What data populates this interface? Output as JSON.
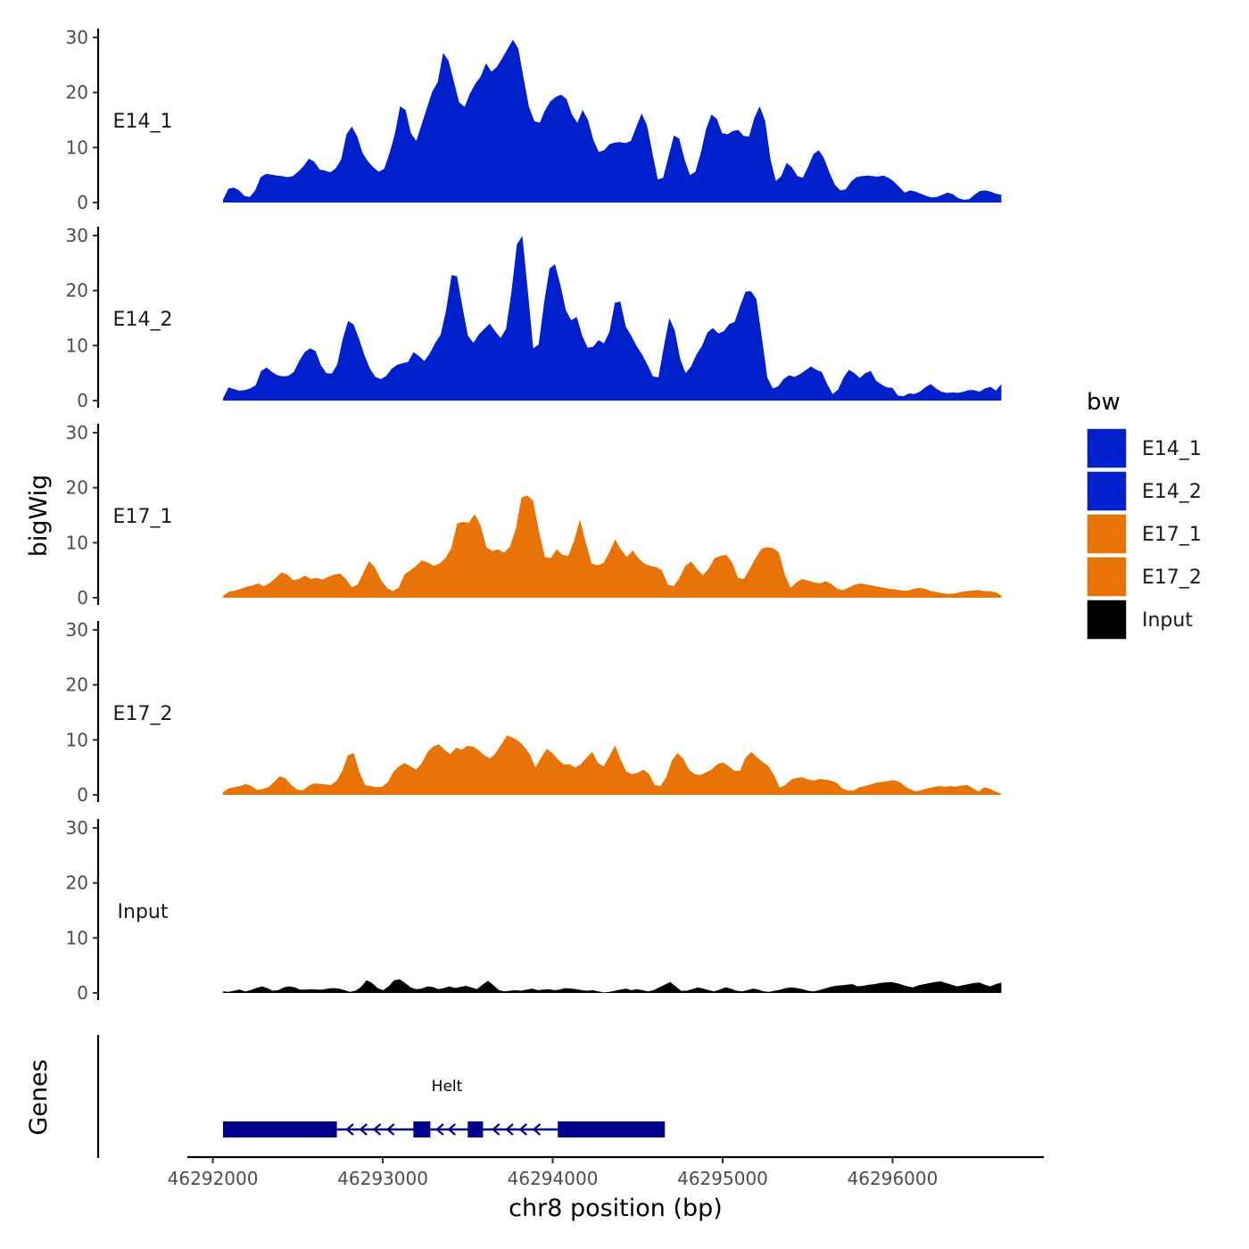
{
  "chart_data": {
    "type": "area",
    "ylabel": "bigWig",
    "xlabel": "chr8 position (bp)",
    "genes_label": "Genes",
    "xlim": [
      46291850,
      46296890
    ],
    "x_range": [
      46292060,
      46296640
    ],
    "ylim": [
      0,
      31
    ],
    "yticks": [
      0,
      10,
      20,
      30
    ],
    "xticks": [
      46292000,
      46293000,
      46294000,
      46295000,
      46296000
    ],
    "xtick_labels": [
      "46292000",
      "46293000",
      "46294000",
      "46295000",
      "46296000"
    ],
    "tracks": [
      {
        "name": "E14_1",
        "label": "E14_1",
        "color": "#0020cc",
        "values": [
          0.5,
          2.5,
          2.7,
          2.2,
          1.2,
          1.0,
          2.2,
          4.6,
          5.2,
          5.1,
          4.9,
          4.8,
          4.6,
          4.8,
          5.6,
          6.6,
          8.0,
          7.4,
          6.0,
          5.8,
          5.5,
          6.2,
          7.8,
          12.4,
          13.8,
          12.0,
          9.0,
          7.5,
          6.4,
          5.6,
          6.1,
          8.9,
          12.4,
          17.5,
          16.8,
          12.6,
          11.2,
          14.2,
          17.2,
          20.2,
          21.9,
          27.2,
          25.8,
          22.0,
          18.2,
          17.4,
          19.8,
          21.6,
          22.9,
          25.3,
          23.8,
          24.6,
          26.2,
          27.9,
          29.6,
          28.0,
          22.6,
          17.4,
          14.8,
          14.5,
          16.8,
          18.4,
          19.2,
          19.6,
          18.8,
          16.0,
          14.5,
          16.8,
          15.0,
          11.4,
          9.2,
          9.5,
          10.6,
          10.9,
          11.0,
          10.8,
          11.2,
          13.8,
          16.2,
          14.0,
          9.0,
          4.2,
          4.5,
          8.4,
          12.2,
          11.6,
          7.8,
          5.0,
          5.6,
          9.0,
          13.4,
          16.0,
          15.2,
          12.6,
          12.4,
          13.0,
          13.2,
          12.1,
          12.0,
          15.4,
          17.5,
          14.8,
          7.8,
          3.9,
          4.8,
          7.2,
          6.4,
          4.8,
          4.5,
          6.5,
          8.8,
          9.5,
          8.0,
          5.4,
          3.2,
          2.2,
          2.4,
          3.8,
          4.6,
          4.8,
          4.9,
          4.8,
          4.7,
          4.9,
          4.5,
          3.8,
          2.8,
          1.8,
          2.2,
          2.0,
          1.6,
          1.2,
          0.9,
          1.0,
          1.4,
          1.8,
          1.5,
          0.8,
          0.5,
          0.6,
          1.4,
          2.1,
          2.2,
          2.0,
          1.6,
          1.4
        ]
      },
      {
        "name": "E14_2",
        "label": "E14_2",
        "color": "#0020cc",
        "values": [
          0.4,
          2.4,
          2.1,
          1.8,
          1.9,
          2.2,
          2.8,
          5.4,
          6.0,
          5.2,
          4.6,
          4.4,
          4.5,
          5.2,
          7.2,
          8.8,
          9.5,
          9.0,
          6.4,
          5.0,
          4.9,
          6.6,
          11.2,
          14.5,
          13.8,
          11.2,
          8.2,
          5.8,
          4.3,
          3.9,
          4.5,
          5.8,
          6.5,
          6.8,
          7.0,
          8.8,
          8.1,
          7.2,
          8.6,
          10.5,
          12.0,
          16.5,
          22.8,
          22.6,
          17.0,
          11.8,
          10.5,
          12.0,
          13.0,
          14.0,
          12.6,
          11.4,
          13.0,
          19.8,
          28.4,
          29.9,
          20.0,
          9.5,
          10.2,
          17.8,
          24.0,
          24.8,
          21.0,
          16.4,
          14.6,
          15.2,
          11.8,
          9.6,
          9.8,
          11.0,
          10.4,
          12.5,
          17.8,
          18.0,
          13.5,
          11.8,
          9.9,
          8.4,
          6.5,
          4.4,
          4.2,
          9.8,
          15.0,
          12.8,
          7.6,
          5.0,
          6.2,
          8.4,
          9.9,
          12.4,
          13.2,
          12.2,
          12.6,
          13.9,
          14.3,
          17.2,
          19.8,
          19.9,
          18.4,
          11.4,
          4.2,
          2.2,
          2.6,
          3.9,
          4.6,
          4.3,
          4.8,
          5.5,
          6.2,
          5.6,
          5.2,
          3.0,
          1.2,
          2.0,
          4.2,
          5.6,
          5.0,
          4.1,
          5.0,
          5.4,
          3.6,
          2.9,
          2.4,
          2.3,
          0.9,
          0.8,
          1.3,
          1.2,
          1.6,
          2.4,
          3.0,
          2.2,
          1.6,
          1.4,
          1.5,
          1.4,
          1.6,
          1.9,
          1.9,
          1.6,
          2.2,
          2.5,
          1.8,
          3.0
        ]
      },
      {
        "name": "E17_1",
        "label": "E17_1",
        "color": "#e87306",
        "values": [
          0.3,
          1.1,
          1.3,
          1.6,
          2.0,
          2.2,
          2.6,
          2.1,
          2.7,
          3.6,
          4.6,
          4.2,
          3.2,
          3.4,
          4.0,
          3.4,
          3.6,
          3.3,
          3.8,
          4.2,
          4.4,
          3.4,
          1.9,
          2.4,
          4.6,
          6.7,
          5.4,
          3.2,
          1.8,
          1.2,
          1.8,
          4.2,
          5.0,
          5.8,
          6.8,
          6.4,
          5.8,
          6.2,
          7.2,
          9.0,
          13.5,
          13.8,
          13.6,
          15.2,
          13.2,
          9.2,
          8.5,
          8.8,
          8.2,
          9.2,
          12.4,
          18.2,
          18.6,
          17.6,
          12.0,
          7.4,
          7.2,
          8.8,
          7.8,
          7.6,
          10.4,
          14.2,
          10.0,
          6.2,
          5.9,
          6.3,
          8.2,
          10.6,
          8.8,
          7.4,
          8.6,
          7.2,
          6.2,
          5.8,
          5.6,
          5.0,
          2.4,
          2.1,
          3.6,
          5.8,
          6.6,
          5.2,
          4.1,
          5.3,
          7.2,
          7.6,
          7.8,
          6.4,
          3.6,
          3.4,
          5.2,
          7.2,
          8.9,
          9.2,
          9.0,
          8.2,
          4.2,
          1.8,
          2.8,
          3.4,
          3.1,
          2.8,
          2.6,
          3.0,
          2.5,
          1.6,
          1.4,
          1.9,
          2.4,
          2.6,
          2.4,
          2.2,
          2.0,
          1.8,
          1.6,
          1.5,
          1.3,
          1.3,
          1.6,
          1.8,
          1.6,
          1.2,
          1.0,
          0.8,
          0.7,
          0.8,
          1.0,
          1.2,
          1.3,
          1.4,
          1.2,
          1.2,
          1.0,
          0.4
        ]
      },
      {
        "name": "E17_2",
        "label": "E17_2",
        "color": "#e87306",
        "values": [
          0.5,
          1.2,
          1.4,
          1.6,
          2.0,
          1.6,
          0.9,
          1.1,
          1.4,
          2.4,
          3.4,
          3.0,
          1.8,
          1.0,
          0.8,
          1.6,
          2.1,
          2.0,
          1.9,
          1.8,
          2.6,
          4.4,
          7.2,
          7.6,
          4.2,
          1.8,
          1.6,
          1.4,
          1.5,
          2.3,
          4.2,
          5.2,
          5.8,
          5.2,
          4.6,
          5.8,
          7.8,
          8.8,
          9.2,
          8.2,
          7.4,
          8.6,
          8.2,
          8.9,
          8.8,
          8.1,
          7.2,
          6.6,
          7.6,
          9.2,
          10.8,
          10.4,
          9.8,
          8.8,
          7.4,
          5.0,
          6.8,
          8.4,
          7.6,
          6.4,
          5.5,
          5.6,
          5.0,
          5.6,
          6.8,
          7.8,
          5.8,
          5.2,
          7.0,
          9.0,
          6.4,
          4.2,
          3.8,
          4.0,
          4.6,
          3.8,
          1.8,
          1.6,
          3.2,
          6.2,
          7.6,
          6.6,
          4.6,
          3.8,
          3.6,
          4.1,
          4.6,
          5.6,
          5.9,
          5.2,
          4.4,
          4.4,
          6.8,
          7.8,
          6.8,
          6.0,
          5.2,
          3.6,
          1.3,
          1.8,
          2.8,
          3.1,
          3.2,
          2.8,
          2.6,
          2.9,
          2.8,
          2.6,
          2.2,
          1.2,
          0.8,
          0.8,
          1.4,
          1.6,
          1.9,
          2.2,
          2.4,
          2.5,
          2.7,
          2.4,
          1.6,
          1.0,
          0.6,
          0.9,
          1.2,
          1.4,
          1.6,
          1.5,
          1.6,
          1.5,
          1.7,
          1.8,
          1.2,
          0.6,
          1.4,
          1.1,
          0.6,
          0.2
        ]
      },
      {
        "name": "Input",
        "label": "Input",
        "color": "#000000",
        "values": [
          0.3,
          0.2,
          0.4,
          0.6,
          0.3,
          0.5,
          0.9,
          1.2,
          0.9,
          0.4,
          0.5,
          1.0,
          1.2,
          1.0,
          0.6,
          0.6,
          0.7,
          0.6,
          0.6,
          0.8,
          0.9,
          0.8,
          0.5,
          0.2,
          0.4,
          1.1,
          2.3,
          1.8,
          0.9,
          0.5,
          1.2,
          2.3,
          2.5,
          1.8,
          1.0,
          0.7,
          0.8,
          1.2,
          1.1,
          0.7,
          0.9,
          1.2,
          0.9,
          1.1,
          1.3,
          1.0,
          0.7,
          1.5,
          2.2,
          1.4,
          0.5,
          0.3,
          0.4,
          0.5,
          0.4,
          0.6,
          0.8,
          0.5,
          0.6,
          0.7,
          0.5,
          0.6,
          0.9,
          0.8,
          0.7,
          0.5,
          0.4,
          0.5,
          0.3,
          0.1,
          0.2,
          0.4,
          0.6,
          0.8,
          0.5,
          0.7,
          0.5,
          0.3,
          0.5,
          1.0,
          1.5,
          2.0,
          1.2,
          0.4,
          0.4,
          0.7,
          1.0,
          0.8,
          0.5,
          0.3,
          0.6,
          1.0,
          0.8,
          0.4,
          0.3,
          0.5,
          0.8,
          0.6,
          0.3,
          0.2,
          0.4,
          0.6,
          0.9,
          1.0,
          0.9,
          0.7,
          0.4,
          0.3,
          0.5,
          0.8,
          1.1,
          1.3,
          1.4,
          1.5,
          1.6,
          1.2,
          1.3,
          1.5,
          1.6,
          1.8,
          1.9,
          2.0,
          1.8,
          1.5,
          1.2,
          1.0,
          1.4,
          1.6,
          1.8,
          2.0,
          2.1,
          1.8,
          1.5,
          1.2,
          1.4,
          1.6,
          1.8,
          1.9,
          1.5,
          1.2,
          1.6,
          1.9
        ]
      }
    ],
    "legend": {
      "title": "bw",
      "entries": [
        {
          "label": "E14_1",
          "color": "#0020cc"
        },
        {
          "label": "E14_2",
          "color": "#0020cc"
        },
        {
          "label": "E17_1",
          "color": "#e87306"
        },
        {
          "label": "E17_2",
          "color": "#e87306"
        },
        {
          "label": "Input",
          "color": "#000000"
        }
      ]
    },
    "gene": {
      "name": "Helt",
      "label": "Helt",
      "color": "#00008b",
      "strand": "-",
      "start": 46292060,
      "end": 46294660,
      "exons": [
        [
          46292060,
          46292730
        ],
        [
          46293180,
          46293280
        ],
        [
          46293500,
          46293590
        ],
        [
          46294030,
          46294660
        ]
      ],
      "arrows": [
        46292800,
        46292880,
        46292960,
        46293040,
        46293330,
        46293400,
        46293660,
        46293740,
        46293820,
        46293900
      ]
    }
  }
}
